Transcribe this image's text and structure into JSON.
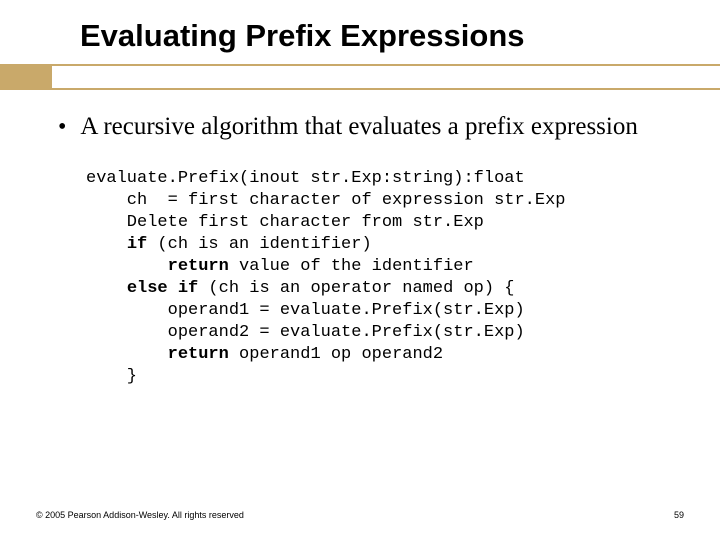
{
  "title": "Evaluating Prefix Expressions",
  "bullet": "A recursive algorithm that evaluates a prefix expression",
  "code": {
    "l1": "evaluate.Prefix(inout str.Exp:string):float",
    "l2a": "    ch  = first character of expression str.Exp",
    "l3": "    Delete first character from str.Exp",
    "l4a": "    ",
    "l4b": "if",
    "l4c": " (ch is an identifier)",
    "l5a": "        ",
    "l5b": "return",
    "l5c": " value of the identifier",
    "l6a": "    ",
    "l6b": "else if",
    "l6c": " (ch is an operator named op) {",
    "l7": "        operand1 = evaluate.Prefix(str.Exp)",
    "l8": "        operand2 = evaluate.Prefix(str.Exp)",
    "l9a": "        ",
    "l9b": "return",
    "l9c": " operand1 op operand2",
    "l10": "    }"
  },
  "footer": {
    "copyright": "© 2005 Pearson Addison-Wesley. All rights reserved",
    "page": "59"
  },
  "colors": {
    "accent": "#c9a96a",
    "text": "#000000",
    "background": "#ffffff"
  }
}
